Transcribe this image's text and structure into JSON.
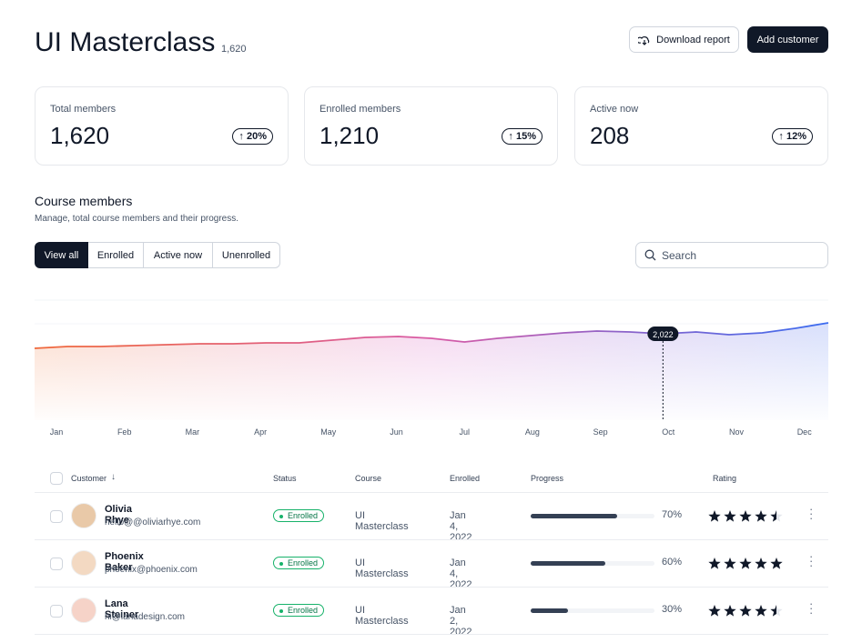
{
  "header": {
    "title": "UI Masterclass",
    "count": "1,620",
    "buttons": [
      "Download report",
      "Add customer"
    ]
  },
  "stats": [
    {
      "label": "Total members",
      "value": "1,620",
      "change": "20%"
    },
    {
      "label": "Enrolled members",
      "value": "1,210",
      "change": "15%"
    },
    {
      "label": "Active now",
      "value": "208",
      "change": "12%"
    }
  ],
  "section": {
    "title": "Course members",
    "subtitle": "Manage, total course members and their progress.",
    "tabs": [
      "View all",
      "Enrolled",
      "Active now",
      "Unenrolled"
    ],
    "search": "Search"
  },
  "chart": {
    "type": "area",
    "months": [
      "Jan",
      "Feb",
      "Mar",
      "Apr",
      "May",
      "Jun",
      "Jul",
      "Aug",
      "Sep",
      "Oct",
      "Nov",
      "Dec"
    ],
    "values": [
      1862,
      1882,
      1882,
      1892,
      1902,
      1912,
      1912,
      1922,
      1922,
      1952,
      1982,
      1992,
      1972,
      1932,
      1972,
      2002,
      2032,
      2052,
      2042,
      2022,
      2042,
      2012,
      2032,
      2082,
      2142
    ],
    "tooltip": {
      "value": 2022,
      "label": "2,022"
    }
  },
  "table": {
    "headers": [
      "Customer",
      "Status",
      "Course",
      "Enrolled",
      "Progress",
      "Rating"
    ],
    "rows": [
      {
        "name": "Olivia Rhye",
        "email": "hello@@oliviarhye.com",
        "status": "Enrolled",
        "course": "UI Masterclass",
        "date": "Jan 4, 2022",
        "progress": {
          "value": 70,
          "label": "70%"
        },
        "rating": 4.5
      },
      {
        "name": "Phoenix Baker",
        "email": "phoenix@phoenix.com",
        "status": "Enrolled",
        "course": "UI Masterclass",
        "date": "Jan 4, 2022",
        "progress": {
          "value": 60,
          "label": "60%"
        },
        "rating": 5
      },
      {
        "name": "Lana Steiner",
        "email": "hi@lanadesign.com",
        "status": "Enrolled",
        "course": "UI Masterclass",
        "date": "Jan 2, 2022",
        "progress": {
          "value": 30,
          "label": "30%"
        },
        "rating": 4.5
      }
    ]
  }
}
